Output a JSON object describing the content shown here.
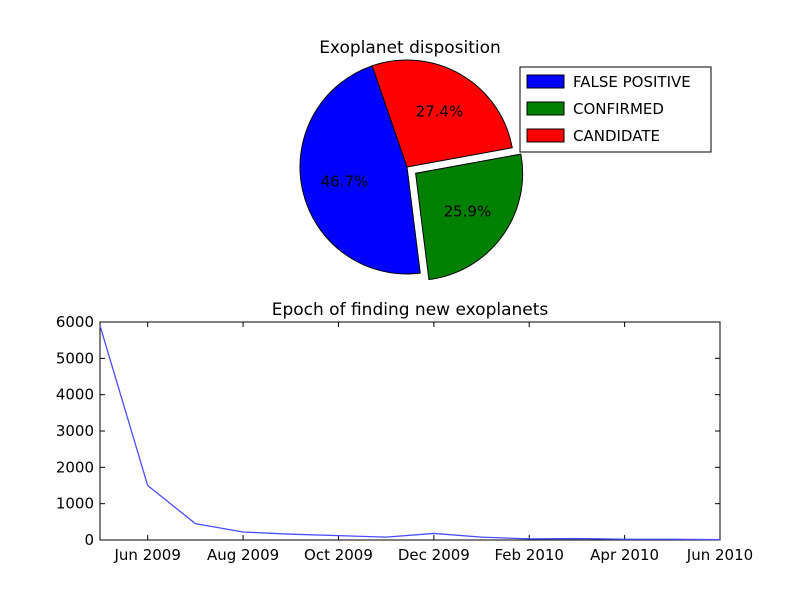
{
  "chart_data": [
    {
      "type": "pie",
      "title": "Exoplanet disposition",
      "slices": [
        {
          "label": "FALSE POSITIVE",
          "value": 46.7,
          "pct_label": "46.7%",
          "color": "#0000ff",
          "explode": 0
        },
        {
          "label": "CONFIRMED",
          "value": 25.9,
          "pct_label": "25.9%",
          "color": "#008000",
          "explode": 0.1
        },
        {
          "label": "CANDIDATE",
          "value": 27.4,
          "pct_label": "27.4%",
          "color": "#ff0000",
          "explode": 0
        }
      ],
      "legend_position": "right"
    },
    {
      "type": "line",
      "title": "Epoch of finding new exoplanets",
      "xlabel": "",
      "ylabel": "",
      "x": [
        "2009-05",
        "2009-06",
        "2009-07",
        "2009-08",
        "2009-09",
        "2009-10",
        "2009-11",
        "2009-12",
        "2010-01",
        "2010-02",
        "2010-03",
        "2010-04",
        "2010-05",
        "2010-06"
      ],
      "y": [
        5900,
        1500,
        450,
        220,
        160,
        120,
        80,
        180,
        80,
        30,
        40,
        20,
        20,
        10
      ],
      "xlim": [
        "2009-05",
        "2010-06"
      ],
      "ylim": [
        0,
        6000
      ],
      "yticks": [
        0,
        1000,
        2000,
        3000,
        4000,
        5000,
        6000
      ],
      "xticks": [
        "2009-06",
        "2009-08",
        "2009-10",
        "2009-12",
        "2010-02",
        "2010-04",
        "2010-06"
      ],
      "xtick_labels": [
        "Jun 2009",
        "Aug 2009",
        "Oct 2009",
        "Dec 2009",
        "Feb 2010",
        "Apr 2010",
        "Jun 2010"
      ],
      "color": "#4b4bff",
      "grid": false
    }
  ]
}
